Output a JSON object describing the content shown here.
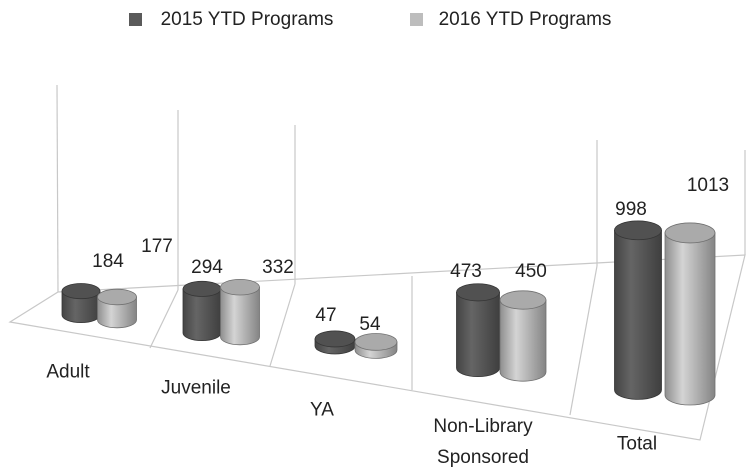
{
  "chart_data": {
    "type": "bar3d",
    "categories": [
      "Adult",
      "Juvenile",
      "YA",
      "Non-Library Sponsored",
      "Total"
    ],
    "series": [
      {
        "name": "2015 YTD Programs",
        "color": "#5a5a5a",
        "values": [
          184,
          294,
          47,
          473,
          998
        ]
      },
      {
        "name": "2016 YTD Programs",
        "color": "#bdbdbd",
        "values": [
          177,
          332,
          54,
          450,
          1013
        ]
      }
    ],
    "legend": "top"
  }
}
